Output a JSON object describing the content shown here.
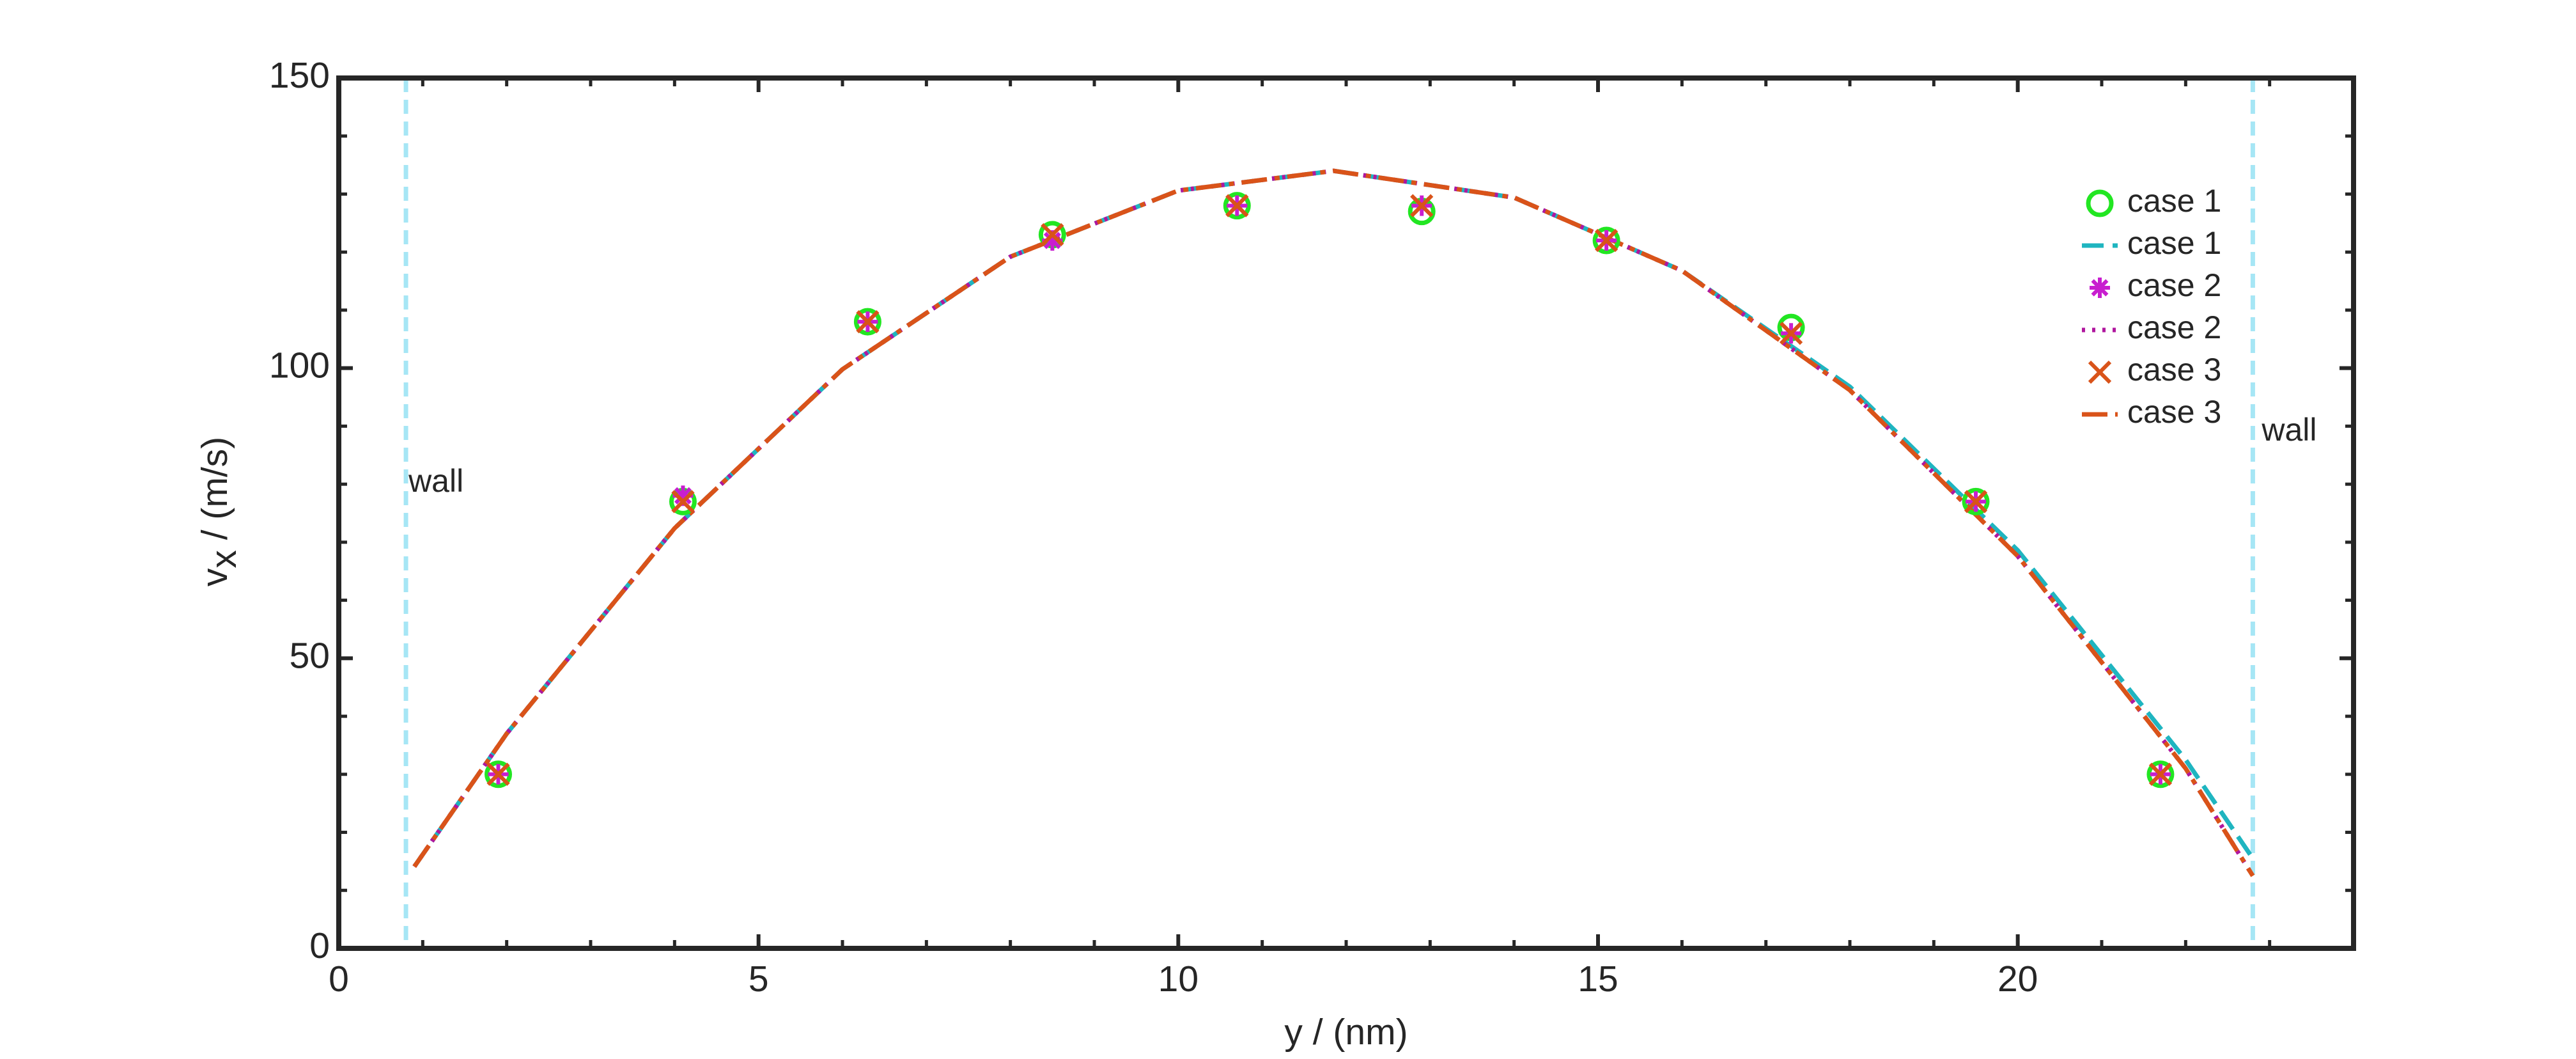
{
  "chart_data": {
    "type": "line",
    "xlabel": "y / (nm)",
    "ylabel": [
      "v",
      "x",
      " / (m/s)"
    ],
    "xlim": [
      0,
      24
    ],
    "ylim": [
      0,
      150
    ],
    "xticks": [
      0,
      5,
      10,
      15,
      20
    ],
    "yticks": [
      0,
      50,
      100,
      150
    ],
    "xminorticks": [
      1,
      2,
      3,
      4,
      6,
      7,
      8,
      9,
      11,
      12,
      13,
      14,
      16,
      17,
      18,
      19,
      21,
      22,
      23
    ],
    "yminorticks": [
      10,
      20,
      30,
      40,
      60,
      70,
      80,
      90,
      110,
      120,
      130,
      140
    ],
    "legend": "upper right",
    "walls": [
      {
        "x": 0.8,
        "label": "wall",
        "color": "#a6e6f5"
      },
      {
        "x": 22.8,
        "label": "wall",
        "color": "#a6e6f5"
      }
    ],
    "x": [
      1.9,
      4.1,
      6.3,
      8.5,
      10.7,
      12.9,
      15.1,
      17.3,
      19.5,
      21.7
    ],
    "series": [
      {
        "name": "case 1",
        "style": "marker",
        "marker": "o",
        "color": "#22e622",
        "values": [
          30,
          77,
          108,
          123,
          128,
          127,
          122,
          107,
          77,
          30
        ]
      },
      {
        "name": "case 1",
        "style": "line",
        "dash": "dashed",
        "color": "#1fb5c0",
        "x": [
          0.9,
          2,
          4,
          6,
          8,
          10,
          11.85,
          14,
          16,
          18,
          20,
          22,
          22.8
        ],
        "values": [
          14.1,
          37,
          72.4,
          99.8,
          119.2,
          130.6,
          134,
          129.4,
          116.8,
          96.8,
          68.6,
          32.5,
          15.5
        ]
      },
      {
        "name": "case 2",
        "style": "marker",
        "marker": "*",
        "color": "#c81ecf",
        "values": [
          30,
          78,
          108,
          122,
          128,
          128,
          122,
          106,
          77,
          30
        ]
      },
      {
        "name": "case 2",
        "style": "line",
        "dash": "dotted",
        "color": "#b0179e",
        "x": [
          0.9,
          2,
          4,
          6,
          8,
          10,
          11.85,
          14,
          16,
          18,
          20,
          22,
          22.8
        ],
        "values": [
          14.1,
          37,
          72.4,
          99.8,
          119.2,
          130.6,
          134,
          129.4,
          116.8,
          96.2,
          67.6,
          31,
          12.5
        ]
      },
      {
        "name": "case 3",
        "style": "marker",
        "marker": "x",
        "color": "#d95319",
        "values": [
          30,
          77,
          108,
          123,
          128,
          128,
          122,
          106,
          77,
          30
        ]
      },
      {
        "name": "case 3",
        "style": "line",
        "dash": "dashdot",
        "color": "#d95319",
        "x": [
          0.9,
          2,
          4,
          6,
          8,
          10,
          11.85,
          14,
          16,
          18,
          20,
          22,
          22.8
        ],
        "values": [
          14.1,
          37,
          72.4,
          99.8,
          119.2,
          130.6,
          134,
          129.4,
          116.8,
          96.2,
          67.6,
          31,
          12.5
        ]
      }
    ]
  }
}
